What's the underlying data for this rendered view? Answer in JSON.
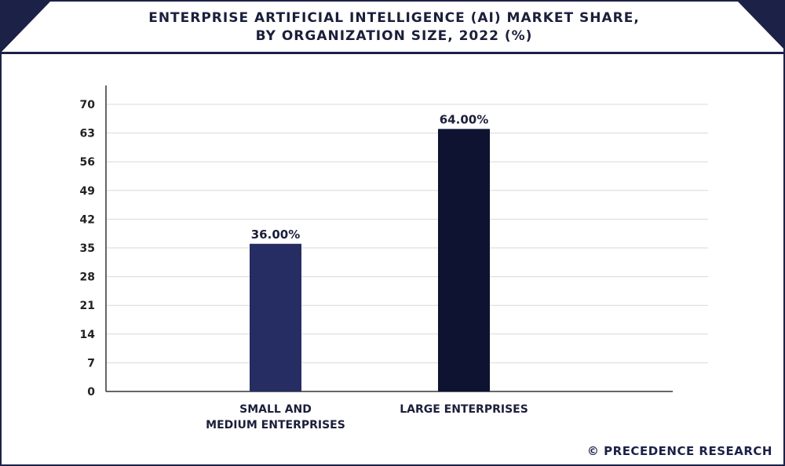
{
  "header": {
    "title_line1": "ENTERPRISE ARTIFICIAL INTELLIGENCE (AI) MARKET SHARE,",
    "title_line2": "BY ORGANIZATION SIZE, 2022 (%)"
  },
  "watermark": "© PRECEDENCE RESEARCH",
  "chart_data": {
    "type": "bar",
    "title": "ENTERPRISE ARTIFICIAL INTELLIGENCE (AI) MARKET SHARE, BY ORGANIZATION SIZE, 2022 (%)",
    "categories": [
      "SMALL AND MEDIUM ENTERPRISES",
      "LARGE ENTERPRISES"
    ],
    "category_lines": [
      [
        "SMALL AND",
        "MEDIUM ENTERPRISES"
      ],
      [
        "LARGE ENTERPRISES"
      ]
    ],
    "values": [
      36.0,
      64.0
    ],
    "data_labels": [
      "36.00%",
      "64.00%"
    ],
    "bar_colors": [
      "#262d63",
      "#0d1331"
    ],
    "ylim": [
      0,
      70
    ],
    "yticks": [
      0,
      7,
      14,
      21,
      28,
      35,
      42,
      49,
      56,
      63,
      70
    ],
    "xlabel": "",
    "ylabel": "",
    "grid": true,
    "legend": "none"
  }
}
